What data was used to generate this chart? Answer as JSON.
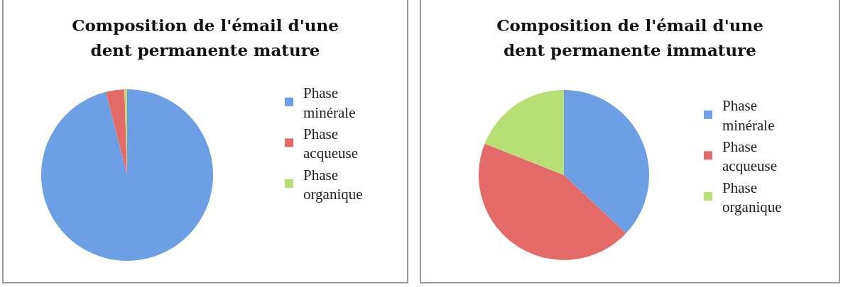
{
  "chart_data": [
    {
      "type": "pie",
      "title": "Composition de l'émail d'une dent permanente mature",
      "categories": [
        "Phase minérale",
        "Phase acqueuse",
        "Phase organique"
      ],
      "values": [
        96,
        3.5,
        0.5
      ],
      "colors": [
        "#6d9fe5",
        "#e56b69",
        "#b8df76"
      ],
      "legend": "right"
    },
    {
      "type": "pie",
      "title": "Composition de l'émail d'une dent permanente immature",
      "categories": [
        "Phase minérale",
        "Phase acqueuse",
        "Phase organique"
      ],
      "values": [
        37,
        44,
        19
      ],
      "colors": [
        "#6d9fe5",
        "#e56b69",
        "#b8df76"
      ],
      "legend": "right"
    }
  ]
}
